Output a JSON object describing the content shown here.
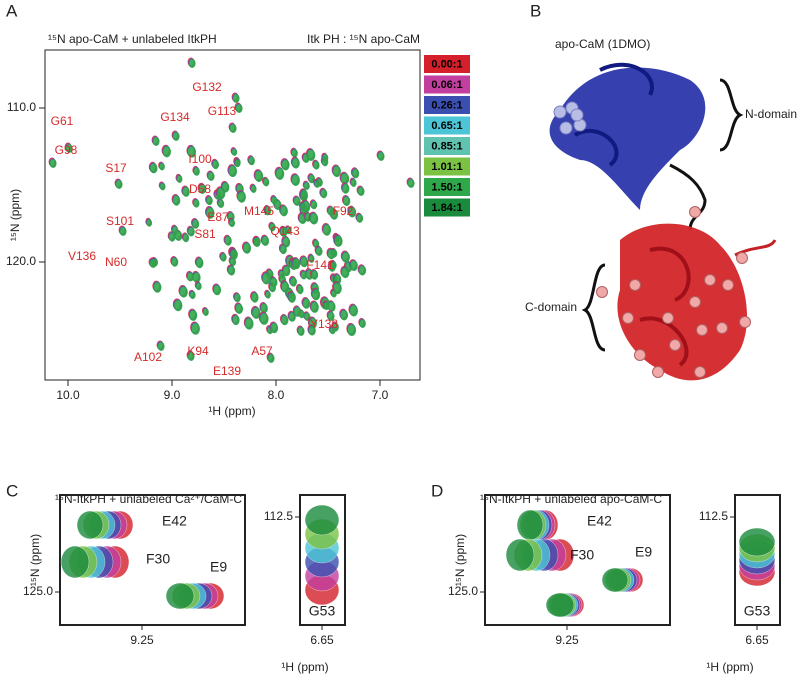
{
  "panel_a": {
    "label": "A",
    "title_left": "¹⁵N apo-CaM  +  unlabeled ItkPH",
    "title_right": "Itk PH : ¹⁵N apo-CaM",
    "x_axis_label": "¹H (ppm)",
    "y_axis_label": "¹⁵N (ppm)",
    "x_ticks": [
      "10.0",
      "9.0",
      "8.0",
      "7.0"
    ],
    "y_ticks": [
      "110.0",
      "120.0"
    ],
    "legend": [
      {
        "label": "0.00:1",
        "color": "#d4202a"
      },
      {
        "label": "0.06:1",
        "color": "#c23fa0"
      },
      {
        "label": "0.26:1",
        "color": "#3a4fb0"
      },
      {
        "label": "0.65:1",
        "color": "#4cc6d6"
      },
      {
        "label": "0.85:1",
        "color": "#5fc3b0"
      },
      {
        "label": "1.01:1",
        "color": "#7cc242"
      },
      {
        "label": "1.50:1",
        "color": "#2fa84a"
      },
      {
        "label": "1.84:1",
        "color": "#1a8a3c"
      }
    ],
    "peak_labels": [
      "G61",
      "G98",
      "G132",
      "G113",
      "G134",
      "S17",
      "I100",
      "D58",
      "M145",
      "Q143",
      "F92",
      "E87",
      "S101",
      "S81",
      "V136",
      "N60",
      "F141",
      "Y138",
      "A102",
      "K94",
      "A57",
      "E139"
    ]
  },
  "panel_b": {
    "label": "B",
    "title": "apo-CaM  (1DMO)",
    "n_domain": "N-domain",
    "c_domain": "C-domain"
  },
  "panel_c": {
    "label": "C",
    "title": "¹⁵N-ItkPH   + unlabeled Ca²⁺/CaM-C",
    "x_axis_label": "¹H (ppm)",
    "y_axis_label": "¹⁵N (ppm)",
    "y_tick": "125.0",
    "x_tick": "9.25",
    "inset_y_tick": "112.5",
    "inset_x_tick": "6.65",
    "peaks": [
      "E42",
      "F30",
      "E9"
    ],
    "inset_peak": "G53"
  },
  "panel_d": {
    "label": "D",
    "title": "¹⁵N-ItkPH   + unlabeled  apo-CaM-C",
    "x_axis_label": "¹H (ppm)",
    "y_axis_label": "¹⁵N (ppm)",
    "y_tick": "125.0",
    "x_tick": "9.25",
    "inset_y_tick": "112.5",
    "inset_x_tick": "6.65",
    "peaks": [
      "E42",
      "F30",
      "E9"
    ],
    "inset_peak": "G53"
  }
}
